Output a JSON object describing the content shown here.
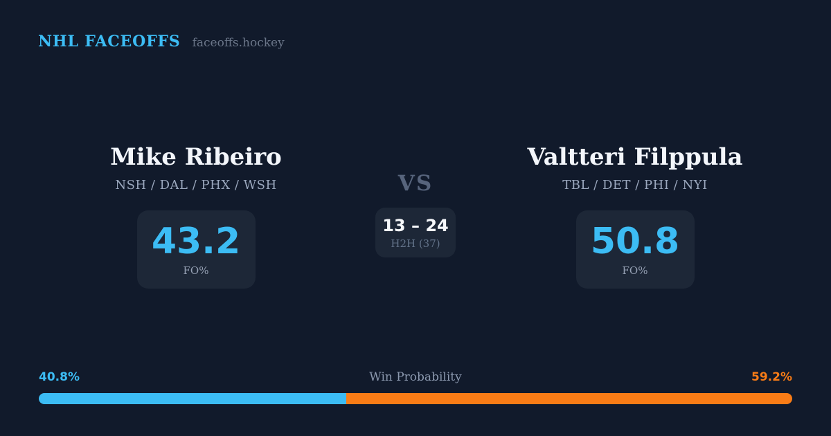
{
  "header": {
    "brand": "NHL FACEOFFS",
    "site": "faceoffs.hockey"
  },
  "players": {
    "left": {
      "name": "Mike Ribeiro",
      "teams": "NSH / DAL / PHX / WSH",
      "fo_pct": "43.2",
      "fo_label": "FO%"
    },
    "right": {
      "name": "Valtteri Filppula",
      "teams": "TBL / DET / PHI / NYI",
      "fo_pct": "50.8",
      "fo_label": "FO%"
    }
  },
  "versus": {
    "label": "VS",
    "h2h_score": "13 – 24",
    "h2h_label": "H2H (37)"
  },
  "win_probability": {
    "label": "Win Probability",
    "left_pct_text": "40.8%",
    "right_pct_text": "59.2%",
    "left_value": 40.8,
    "right_value": 59.2
  },
  "colors": {
    "accent_blue": "#3cbcf4",
    "accent_orange": "#f97c16",
    "background": "#111a2b",
    "card": "#1d2737"
  },
  "chart_data": {
    "type": "bar",
    "title": "Win Probability",
    "categories": [
      "Mike Ribeiro",
      "Valtteri Filppula"
    ],
    "values": [
      40.8,
      59.2
    ],
    "legend_position": "none",
    "xlim": [
      0,
      100
    ]
  }
}
